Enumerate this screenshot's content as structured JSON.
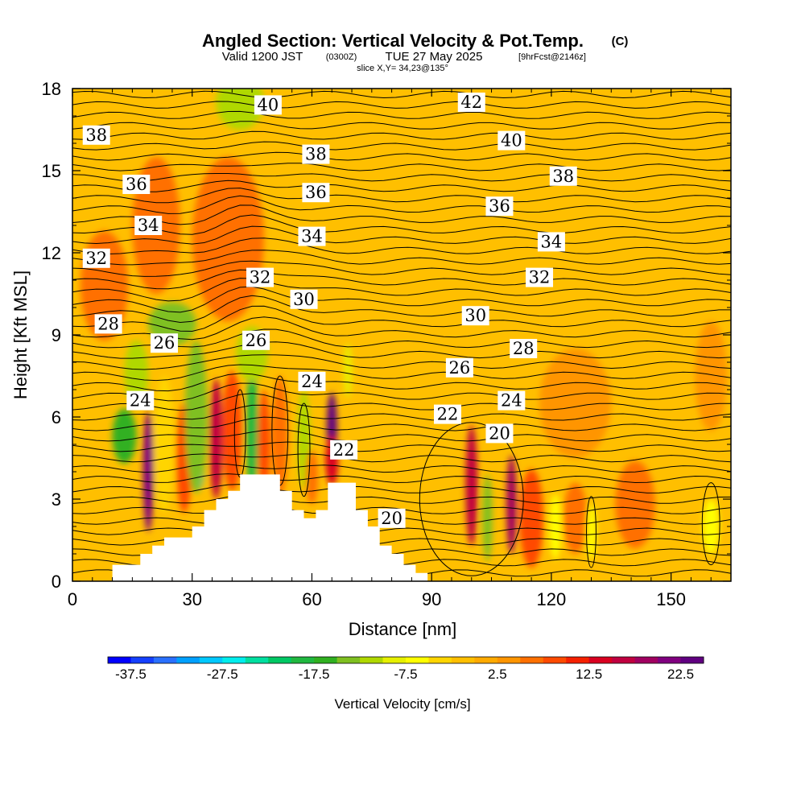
{
  "chart_data": {
    "type": "heatmap",
    "title": {
      "main": "Angled Section: Vertical Velocity & Pot.Temp.",
      "units": "(C)",
      "valid_prefix": "Valid 1200 JST",
      "valid_utc": "(0300Z)",
      "valid_date": "TUE 27 May 2025",
      "forecast": "[9hrFcst@2146z]",
      "slice": "slice X,Y= 34,23@135°"
    },
    "xlabel": "Distance [nm]",
    "ylabel": "Height [Kft MSL]",
    "xlim": [
      0,
      165
    ],
    "ylim": [
      0,
      18
    ],
    "x_ticks": [
      "0",
      "30",
      "60",
      "90",
      "120",
      "150"
    ],
    "y_ticks": [
      "0",
      "3",
      "6",
      "9",
      "12",
      "15",
      "18"
    ],
    "colorbar": {
      "label": "Vertical Velocity [cm/s]",
      "tick_labels": [
        "-37.5",
        "-27.5",
        "-17.5",
        "-7.5",
        "2.5",
        "12.5",
        "22.5"
      ],
      "colors": [
        "#0000ff",
        "#1540ff",
        "#2a70ff",
        "#00a0ff",
        "#00c8ff",
        "#00eded",
        "#00dfa0",
        "#00c864",
        "#20b840",
        "#30b020",
        "#7fc020",
        "#b0d800",
        "#e6f000",
        "#ffff00",
        "#ffd500",
        "#ffbf00",
        "#ffaa00",
        "#ff9500",
        "#ff7000",
        "#ff4a00",
        "#f52000",
        "#d90020",
        "#c00040",
        "#a00060",
        "#80007f",
        "#600080"
      ]
    },
    "contour_labels": [
      {
        "text": "40",
        "x": 49,
        "y": 17.4
      },
      {
        "text": "42",
        "x": 100,
        "y": 17.5
      },
      {
        "text": "38",
        "x": 6,
        "y": 16.3
      },
      {
        "text": "40",
        "x": 110,
        "y": 16.1
      },
      {
        "text": "38",
        "x": 61,
        "y": 15.6
      },
      {
        "text": "38",
        "x": 123,
        "y": 14.8
      },
      {
        "text": "36",
        "x": 16,
        "y": 14.5
      },
      {
        "text": "36",
        "x": 61,
        "y": 14.2
      },
      {
        "text": "36",
        "x": 107,
        "y": 13.7
      },
      {
        "text": "34",
        "x": 19,
        "y": 13.0
      },
      {
        "text": "34",
        "x": 60,
        "y": 12.6
      },
      {
        "text": "34",
        "x": 120,
        "y": 12.4
      },
      {
        "text": "32",
        "x": 6,
        "y": 11.8
      },
      {
        "text": "32",
        "x": 47,
        "y": 11.1
      },
      {
        "text": "32",
        "x": 117,
        "y": 11.1
      },
      {
        "text": "30",
        "x": 58,
        "y": 10.3
      },
      {
        "text": "30",
        "x": 101,
        "y": 9.7
      },
      {
        "text": "28",
        "x": 9,
        "y": 9.4
      },
      {
        "text": "26",
        "x": 23,
        "y": 8.7
      },
      {
        "text": "26",
        "x": 46,
        "y": 8.8
      },
      {
        "text": "28",
        "x": 113,
        "y": 8.5
      },
      {
        "text": "26",
        "x": 97,
        "y": 7.8
      },
      {
        "text": "24",
        "x": 60,
        "y": 7.3
      },
      {
        "text": "24",
        "x": 110,
        "y": 6.6
      },
      {
        "text": "24",
        "x": 17,
        "y": 6.6
      },
      {
        "text": "22",
        "x": 94,
        "y": 6.1
      },
      {
        "text": "20",
        "x": 107,
        "y": 5.4
      },
      {
        "text": "22",
        "x": 68,
        "y": 4.8
      },
      {
        "text": "20",
        "x": 80,
        "y": 2.3
      }
    ],
    "terrain": [
      [
        0,
        0
      ],
      [
        10,
        0
      ],
      [
        10,
        0.6
      ],
      [
        17,
        0.6
      ],
      [
        17,
        1.0
      ],
      [
        20,
        1.0
      ],
      [
        20,
        1.3
      ],
      [
        23,
        1.3
      ],
      [
        23,
        1.6
      ],
      [
        30,
        1.6
      ],
      [
        30,
        2.0
      ],
      [
        33,
        2.0
      ],
      [
        33,
        2.6
      ],
      [
        36,
        2.6
      ],
      [
        36,
        3.0
      ],
      [
        39,
        3.0
      ],
      [
        39,
        3.3
      ],
      [
        42,
        3.3
      ],
      [
        42,
        3.9
      ],
      [
        52,
        3.9
      ],
      [
        52,
        3.3
      ],
      [
        55,
        3.3
      ],
      [
        55,
        2.6
      ],
      [
        58,
        2.6
      ],
      [
        58,
        2.3
      ],
      [
        61,
        2.3
      ],
      [
        61,
        2.6
      ],
      [
        64,
        2.6
      ],
      [
        64,
        3.6
      ],
      [
        71,
        3.6
      ],
      [
        71,
        2.6
      ],
      [
        74,
        2.6
      ],
      [
        74,
        2.0
      ],
      [
        77,
        2.0
      ],
      [
        77,
        1.3
      ],
      [
        80,
        1.3
      ],
      [
        80,
        1.0
      ],
      [
        83,
        1.0
      ],
      [
        83,
        0.6
      ],
      [
        86,
        0.6
      ],
      [
        86,
        0.3
      ],
      [
        89,
        0.3
      ],
      [
        89,
        0
      ],
      [
        165,
        0
      ]
    ],
    "velocity_cells": [
      {
        "x": 42,
        "y": 12.5,
        "sx": 4,
        "sy": 1.6,
        "v": 20
      },
      {
        "x": 41,
        "y": 13.6,
        "sx": 5,
        "sy": 1.0,
        "v": 10
      },
      {
        "x": 39,
        "y": 12.5,
        "sx": 9,
        "sy": 3.0,
        "v": 7
      },
      {
        "x": 21,
        "y": 13.0,
        "sx": 6,
        "sy": 2.5,
        "v": 6
      },
      {
        "x": 42,
        "y": 17.5,
        "sx": 6,
        "sy": 1.0,
        "v": -12
      },
      {
        "x": 25,
        "y": 9.4,
        "sx": 6,
        "sy": 0.8,
        "v": -14
      },
      {
        "x": 16,
        "y": 7.6,
        "sx": 3,
        "sy": 1.2,
        "v": -12
      },
      {
        "x": 13,
        "y": 5.3,
        "sx": 3,
        "sy": 1.0,
        "v": -16
      },
      {
        "x": 19,
        "y": 4.0,
        "sx": 1.3,
        "sy": 2.2,
        "v": 20
      },
      {
        "x": 23,
        "y": 5.0,
        "sx": 2.5,
        "sy": 2.5,
        "v": -5
      },
      {
        "x": 28,
        "y": 4.5,
        "sx": 2,
        "sy": 2.0,
        "v": 8
      },
      {
        "x": 32,
        "y": 5.0,
        "sx": 1.3,
        "sy": 1.6,
        "v": -28
      },
      {
        "x": 31,
        "y": 6.0,
        "sx": 2.8,
        "sy": 2.8,
        "v": -14
      },
      {
        "x": 36,
        "y": 5.2,
        "sx": 1.6,
        "sy": 2.2,
        "v": 16
      },
      {
        "x": 40,
        "y": 5.5,
        "sx": 2.5,
        "sy": 2.2,
        "v": 8
      },
      {
        "x": 45,
        "y": 5.5,
        "sx": 1.5,
        "sy": 2.5,
        "v": -18
      },
      {
        "x": 45,
        "y": 8.3,
        "sx": 4,
        "sy": 1.0,
        "v": -12
      },
      {
        "x": 48,
        "y": 5.0,
        "sx": 1.5,
        "sy": 2.0,
        "v": 8
      },
      {
        "x": 52,
        "y": 5.3,
        "sx": 2,
        "sy": 2.2,
        "v": 6
      },
      {
        "x": 58,
        "y": 5.2,
        "sx": 1.6,
        "sy": 1.8,
        "v": -12
      },
      {
        "x": 60,
        "y": 3.8,
        "sx": 1.5,
        "sy": 1.0,
        "v": 5
      },
      {
        "x": 65,
        "y": 5.6,
        "sx": 1.3,
        "sy": 1.3,
        "v": 24
      },
      {
        "x": 65,
        "y": 4.4,
        "sx": 1.6,
        "sy": 0.9,
        "v": 14
      },
      {
        "x": 69,
        "y": 7.7,
        "sx": 1,
        "sy": 1.0,
        "v": -8
      },
      {
        "x": 100,
        "y": 3.5,
        "sx": 1.5,
        "sy": 2.2,
        "v": 16
      },
      {
        "x": 104,
        "y": 2.3,
        "sx": 1.2,
        "sy": 1.6,
        "v": -14
      },
      {
        "x": 110,
        "y": 2.8,
        "sx": 1.3,
        "sy": 1.8,
        "v": 18
      },
      {
        "x": 115,
        "y": 2.3,
        "sx": 3,
        "sy": 1.8,
        "v": 8
      },
      {
        "x": 121,
        "y": 2.0,
        "sx": 1.5,
        "sy": 1.2,
        "v": -7
      },
      {
        "x": 126,
        "y": 2.3,
        "sx": 3,
        "sy": 1.3,
        "v": 5
      },
      {
        "x": 130,
        "y": 1.8,
        "sx": 1.2,
        "sy": 1.0,
        "v": -6
      },
      {
        "x": 141,
        "y": 2.8,
        "sx": 5,
        "sy": 1.6,
        "v": 6
      },
      {
        "x": 160,
        "y": 2.0,
        "sx": 2,
        "sy": 1.0,
        "v": -7
      },
      {
        "x": 160,
        "y": 7.5,
        "sx": 4,
        "sy": 2.0,
        "v": 4
      },
      {
        "x": 126,
        "y": 6.5,
        "sx": 9,
        "sy": 2.0,
        "v": 4
      },
      {
        "x": 8,
        "y": 10.8,
        "sx": 6,
        "sy": 2.0,
        "v": 5
      }
    ]
  }
}
